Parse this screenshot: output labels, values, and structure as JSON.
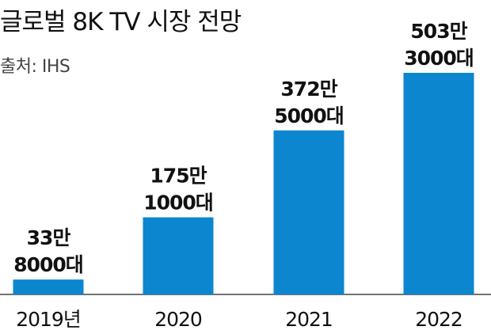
{
  "title": "글로벌 8K TV 시장 전망",
  "source": "출처: IHS",
  "colors": {
    "bar": "#0b86cf",
    "axis": "#444444",
    "text": "#111111"
  },
  "chart_data": {
    "type": "bar",
    "title": "글로벌 8K TV 시장 전망",
    "categories": [
      "2019년",
      "2020",
      "2021",
      "2022"
    ],
    "values": [
      338000,
      1751000,
      3725000,
      5033000
    ],
    "data_labels": [
      [
        "33만",
        "8000대"
      ],
      [
        "175만",
        "1000대"
      ],
      [
        "372만",
        "5000대"
      ],
      [
        "503만",
        "3000대"
      ]
    ],
    "xlabel": "",
    "ylabel": "",
    "ylim": [
      0,
      5033000
    ],
    "grid": false,
    "legend": "none"
  }
}
